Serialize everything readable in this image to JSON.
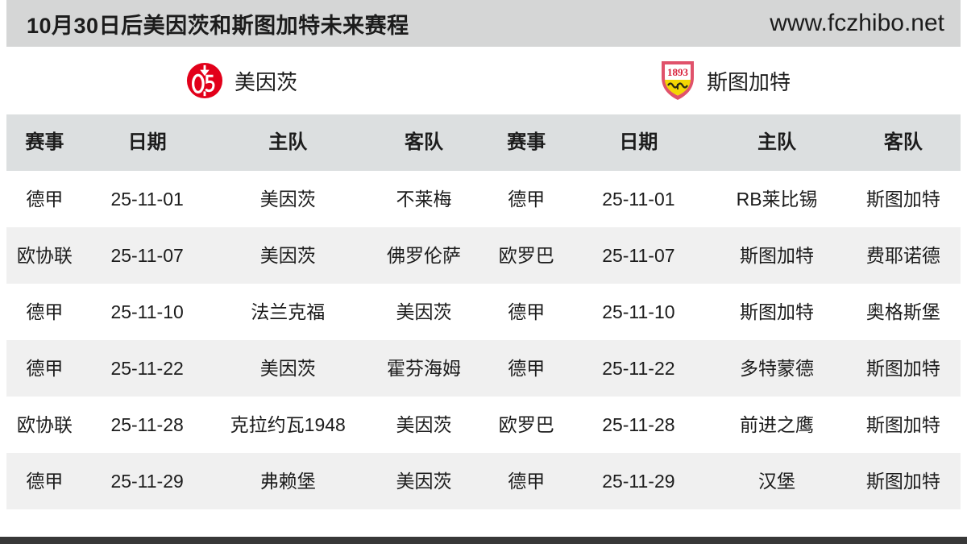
{
  "header": {
    "title": "10月30日后美因茨和斯图加特未来赛程",
    "site_url": "www.fczhibo.net"
  },
  "teams": [
    {
      "name": "美因茨",
      "logo": "mainz-05-crest",
      "primary_color": "#e2001a"
    },
    {
      "name": "斯图加特",
      "logo": "vfb-stuttgart-crest",
      "logo_text": "1893",
      "border_color": "#e0526b",
      "bottom_color": "#f3d703"
    }
  ],
  "table": {
    "columns": [
      "赛事",
      "日期",
      "主队",
      "客队"
    ],
    "left_team": "美因茨",
    "right_team": "斯图加特",
    "left_rows": [
      [
        "德甲",
        "25-11-01",
        "美因茨",
        "不莱梅"
      ],
      [
        "欧协联",
        "25-11-07",
        "美因茨",
        "佛罗伦萨"
      ],
      [
        "德甲",
        "25-11-10",
        "法兰克福",
        "美因茨"
      ],
      [
        "德甲",
        "25-11-22",
        "美因茨",
        "霍芬海姆"
      ],
      [
        "欧协联",
        "25-11-28",
        "克拉约瓦1948",
        "美因茨"
      ],
      [
        "德甲",
        "25-11-29",
        "弗赖堡",
        "美因茨"
      ]
    ],
    "right_rows": [
      [
        "德甲",
        "25-11-01",
        "RB莱比锡",
        "斯图加特"
      ],
      [
        "欧罗巴",
        "25-11-07",
        "斯图加特",
        "费耶诺德"
      ],
      [
        "德甲",
        "25-11-10",
        "斯图加特",
        "奥格斯堡"
      ],
      [
        "德甲",
        "25-11-22",
        "多特蒙德",
        "斯图加特"
      ],
      [
        "欧罗巴",
        "25-11-28",
        "前进之鹰",
        "斯图加特"
      ],
      [
        "德甲",
        "25-11-29",
        "汉堡",
        "斯图加特"
      ]
    ]
  },
  "colors": {
    "top_bar_bg": "#d5d6d6",
    "header_row_bg": "#dcdfe0",
    "row_bg": "#ffffff",
    "row_alt_bg": "#f0f0f0",
    "text": "#1c1c1c",
    "bottom_bar": "#383838",
    "mainz_red": "#e2001a",
    "stuttgart_yellow": "#f3d703"
  }
}
